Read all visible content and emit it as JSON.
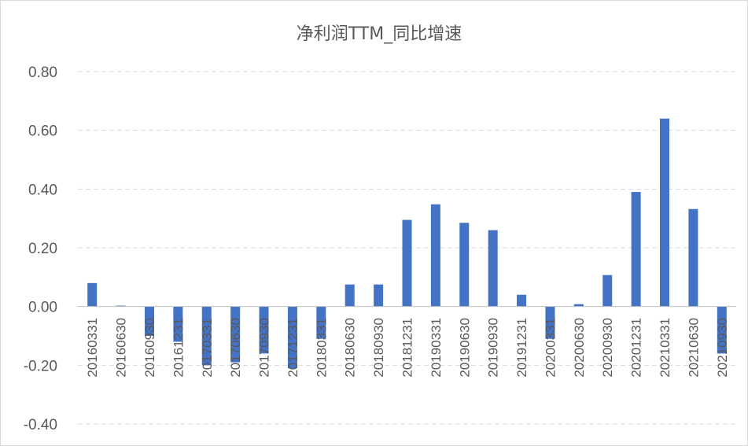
{
  "chart_data": {
    "type": "bar",
    "title": "净利润TTM_同比增速",
    "xlabel": "",
    "ylabel": "",
    "ylim": [
      -0.4,
      0.8
    ],
    "yticks": [
      "0.80",
      "0.60",
      "0.40",
      "0.20",
      "0.00",
      "-0.20",
      "-0.40"
    ],
    "grid": true,
    "legend": "none",
    "bar_color": "#4472c4",
    "categories": [
      "20160331",
      "20160630",
      "20160930",
      "20161231",
      "20170331",
      "20170630",
      "20170930",
      "20171231",
      "20180331",
      "20180630",
      "20180930",
      "20181231",
      "20190331",
      "20190630",
      "20190930",
      "20191231",
      "20200331",
      "20200630",
      "20200930",
      "20201231",
      "20210331",
      "20210630",
      "20210930"
    ],
    "values": [
      0.08,
      0.003,
      -0.1,
      -0.12,
      -0.2,
      -0.19,
      -0.16,
      -0.21,
      -0.11,
      0.075,
      0.075,
      0.295,
      0.348,
      0.285,
      0.26,
      0.04,
      -0.11,
      0.008,
      0.107,
      0.39,
      0.64,
      0.332,
      -0.16
    ]
  }
}
